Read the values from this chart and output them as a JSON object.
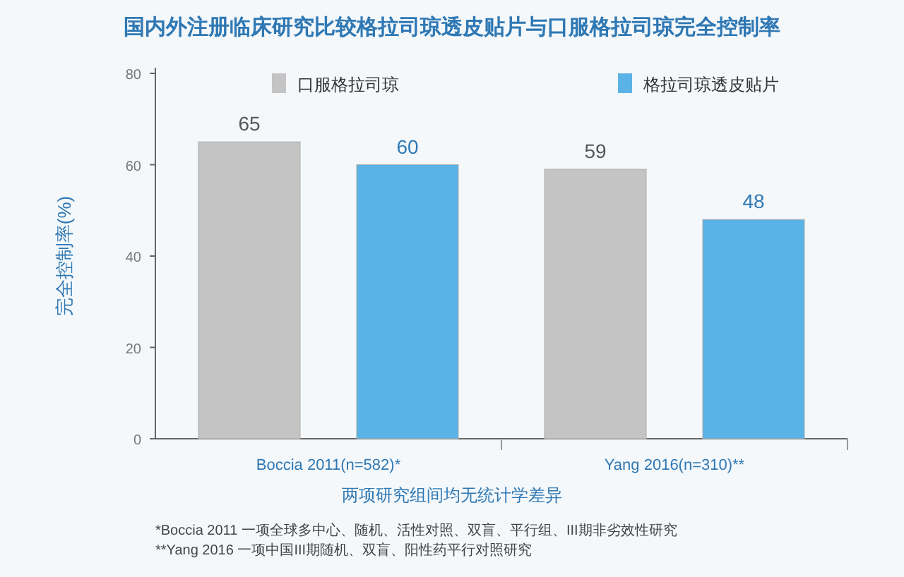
{
  "chart_data": {
    "type": "bar",
    "title": "国内外注册临床研究比较格拉司琼透皮贴片与口服格拉司琼完全控制率",
    "ylabel": "完全控制率(%)",
    "xlabel": "两项研究组间均无统计学差异",
    "categories": [
      "Boccia 2011(n=582)*",
      "Yang 2016(n=310)**"
    ],
    "series": [
      {
        "name": "口服格拉司琼",
        "color": "#c4c4c4",
        "values": [
          65,
          59
        ]
      },
      {
        "name": "格拉司琼透皮贴片",
        "color": "#5ab2e6",
        "values": [
          60,
          48
        ]
      }
    ],
    "ylim": [
      0,
      80
    ],
    "yticks": [
      0,
      20,
      40,
      60,
      80
    ],
    "grid": false,
    "legend": "top",
    "data_labels": true,
    "annotations": [
      "*Boccia 2011 一项全球多中心、随机、活性对照、双盲、平行组、III期非劣效性研究",
      "**Yang 2016 一项中国III期随机、双盲、阳性药平行对照研究"
    ]
  }
}
